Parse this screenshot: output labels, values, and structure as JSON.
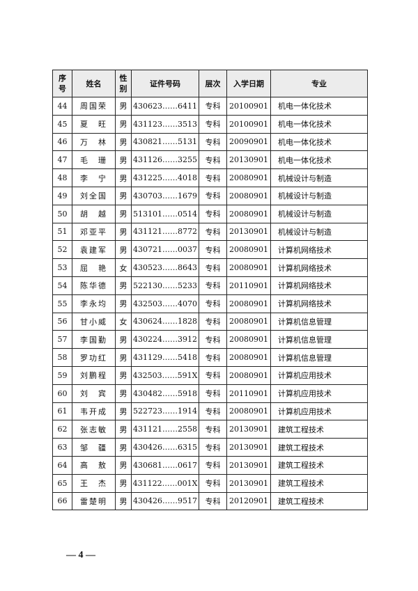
{
  "headers": [
    "序\n号",
    "姓名",
    "性\n别",
    "证件号码",
    "层次",
    "入学日期",
    "专业"
  ],
  "rows": [
    [
      "44",
      "周国荣",
      "男",
      "430623……6411",
      "专科",
      "20100901",
      "机电一体化技术"
    ],
    [
      "45",
      "夏　旺",
      "男",
      "431123……3513",
      "专科",
      "20100901",
      "机电一体化技术"
    ],
    [
      "46",
      "万　林",
      "男",
      "430821……5131",
      "专科",
      "20090901",
      "机电一体化技术"
    ],
    [
      "47",
      "毛　珊",
      "男",
      "431126……3255",
      "专科",
      "20130901",
      "机电一体化技术"
    ],
    [
      "48",
      "李　宁",
      "男",
      "431225……4018",
      "专科",
      "20080901",
      "机械设计与制造"
    ],
    [
      "49",
      "刘全国",
      "男",
      "430703……1679",
      "专科",
      "20080901",
      "机械设计与制造"
    ],
    [
      "50",
      "胡　越",
      "男",
      "513101……0514",
      "专科",
      "20080901",
      "机械设计与制造"
    ],
    [
      "51",
      "邓亚平",
      "男",
      "431121……8772",
      "专科",
      "20130901",
      "机械设计与制造"
    ],
    [
      "52",
      "袁建军",
      "男",
      "430721……0037",
      "专科",
      "20080901",
      "计算机网络技术"
    ],
    [
      "53",
      "屈　艳",
      "女",
      "430523……8643",
      "专科",
      "20080901",
      "计算机网络技术"
    ],
    [
      "54",
      "陈华德",
      "男",
      "522130……5233",
      "专科",
      "20110901",
      "计算机网络技术"
    ],
    [
      "55",
      "李永均",
      "男",
      "432503……4070",
      "专科",
      "20080901",
      "计算机网络技术"
    ],
    [
      "56",
      "甘小威",
      "女",
      "430624……1828",
      "专科",
      "20080901",
      "计算机信息管理"
    ],
    [
      "57",
      "李国勤",
      "男",
      "430224……3912",
      "专科",
      "20080901",
      "计算机信息管理"
    ],
    [
      "58",
      "罗功红",
      "男",
      "431129……5418",
      "专科",
      "20080901",
      "计算机信息管理"
    ],
    [
      "59",
      "刘鹏程",
      "男",
      "432503……591X",
      "专科",
      "20080901",
      "计算机应用技术"
    ],
    [
      "60",
      "刘　宾",
      "男",
      "430482……5918",
      "专科",
      "20110901",
      "计算机应用技术"
    ],
    [
      "61",
      "韦开成",
      "男",
      "522723……1914",
      "专科",
      "20080901",
      "计算机应用技术"
    ],
    [
      "62",
      "张志敏",
      "男",
      "431121……2558",
      "专科",
      "20130901",
      "建筑工程技术"
    ],
    [
      "63",
      "邹　疆",
      "男",
      "430426……6315",
      "专科",
      "20130901",
      "建筑工程技术"
    ],
    [
      "64",
      "高　敖",
      "男",
      "430681……0617",
      "专科",
      "20130901",
      "建筑工程技术"
    ],
    [
      "65",
      "王　杰",
      "男",
      "431122……001X",
      "专科",
      "20130901",
      "建筑工程技术"
    ],
    [
      "66",
      "雷楚明",
      "男",
      "430426……9517",
      "专科",
      "20120901",
      "建筑工程技术"
    ]
  ],
  "footer": "— 4 —"
}
